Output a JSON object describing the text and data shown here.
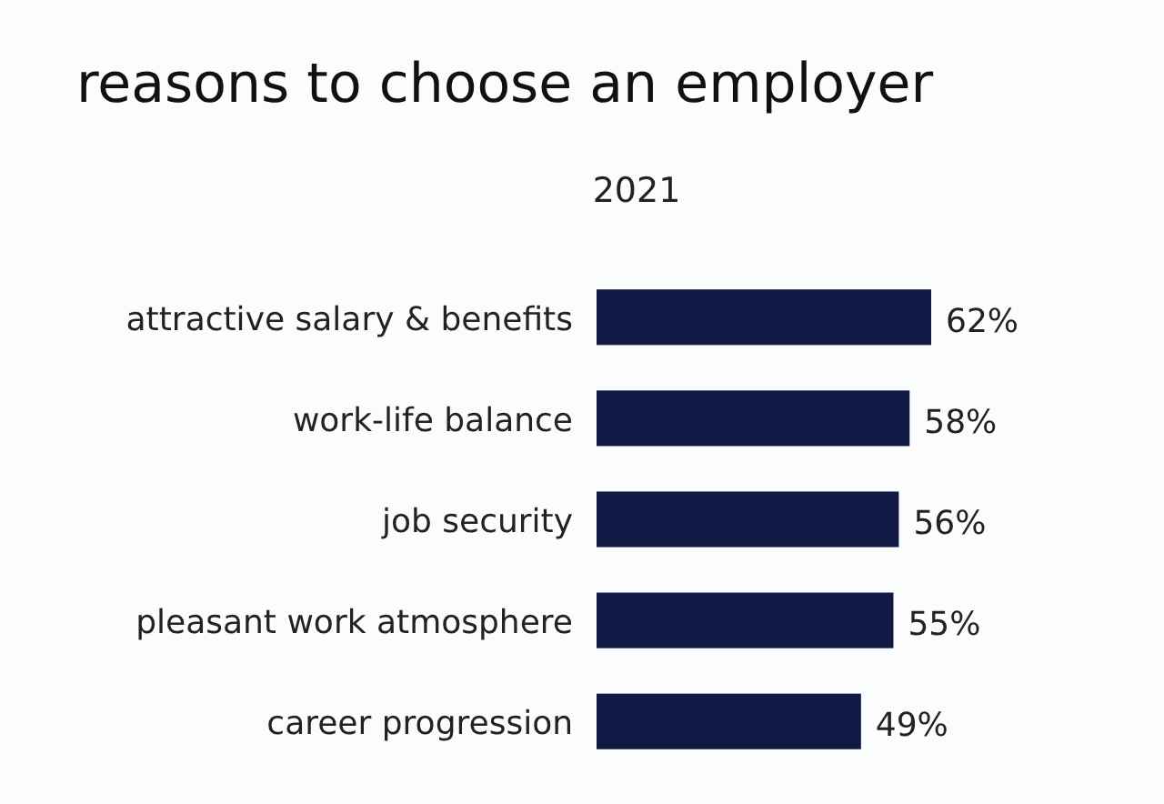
{
  "chart_data": {
    "type": "bar",
    "orientation": "horizontal",
    "title": "reasons to choose an employer",
    "subtitle": "2021",
    "categories": [
      "attractive salary & benefits",
      "work-life balance",
      "job security",
      "pleasant work atmosphere",
      "career progression"
    ],
    "values": [
      62,
      58,
      56,
      55,
      49
    ],
    "value_labels": [
      "62%",
      "58%",
      "56%",
      "55%",
      "49%"
    ],
    "color": "#111a44"
  }
}
